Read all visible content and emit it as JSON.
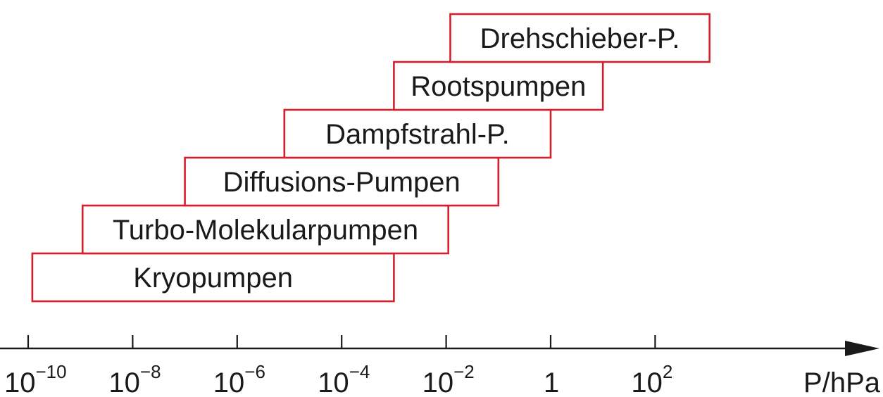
{
  "chart_data": {
    "type": "range-bar",
    "xscale": "log",
    "xlabel": "P/hPa",
    "xlim": [
      1e-10,
      1000
    ],
    "ticks": [
      {
        "value": 1e-10,
        "base": "10",
        "exp": "−10"
      },
      {
        "value": 1e-08,
        "base": "10",
        "exp": "−8"
      },
      {
        "value": 1e-06,
        "base": "10",
        "exp": "−6"
      },
      {
        "value": 0.0001,
        "base": "10",
        "exp": "−4"
      },
      {
        "value": 0.01,
        "base": "10",
        "exp": "−2"
      },
      {
        "value": 1,
        "base": "1",
        "exp": ""
      },
      {
        "value": 100,
        "base": "10",
        "exp": "2"
      }
    ],
    "ranges": [
      {
        "label": "Kryopumpen",
        "min": 1.2e-10,
        "max": 0.001
      },
      {
        "label": "Turbo-Molekularpumpen",
        "min": 1.1e-09,
        "max": 0.011
      },
      {
        "label": "Diffusions-Pumpen",
        "min": 1e-07,
        "max": 0.1
      },
      {
        "label": "Dampfstrahl-P.",
        "min": 8e-06,
        "max": 1
      },
      {
        "label": "Rootspumpen",
        "min": 0.001,
        "max": 10
      },
      {
        "label": "Drehschieber-P.",
        "min": 0.012,
        "max": 1100
      }
    ],
    "box_color": "#d4202c",
    "axis_color": "#1a1a1a"
  }
}
